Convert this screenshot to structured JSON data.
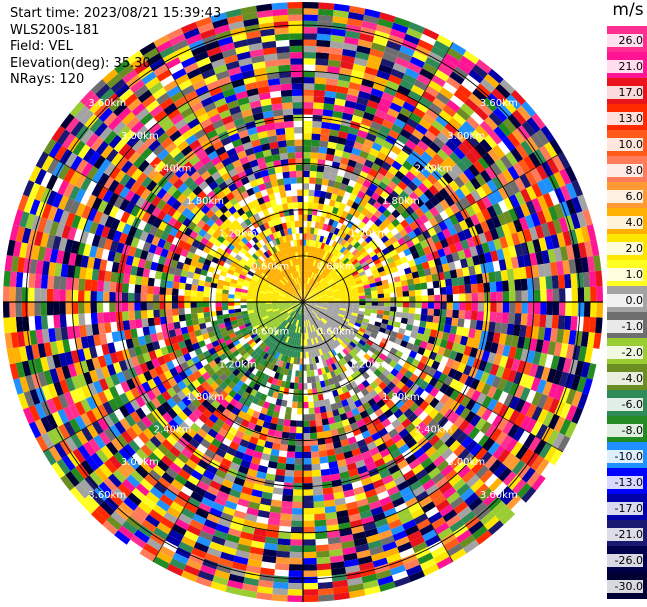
{
  "info": {
    "start_time": "Start time: 2023/08/21 15:39:43",
    "instrument": "WLS200s-181",
    "field": "Field: VEL",
    "elevation": "Elevation(deg): 35.30",
    "nrays": "NRays: 120"
  },
  "colorbar": {
    "unit": "m/s",
    "labels": [
      "26.0",
      "21.0",
      "17.0",
      "13.0",
      "10.0",
      "8.0",
      "6.0",
      "4.0",
      "2.0",
      "1.0",
      "0.0",
      "-1.0",
      "-2.0",
      "-4.0",
      "-6.0",
      "-8.0",
      "-10.0",
      "-13.0",
      "-17.0",
      "-21.0",
      "-26.0",
      "-30.0"
    ],
    "colors": [
      "#ff2f92",
      "#ff1493",
      "#e8131b",
      "#ff2a00",
      "#ff5a1a",
      "#ff7b5a",
      "#ff9a33",
      "#ffb000",
      "#ffe600",
      "#ffff22",
      "#a3a3a3",
      "#6e6e6e",
      "#9acd32",
      "#6b8e23",
      "#2e8b57",
      "#228b22",
      "#1e90ff",
      "#0000ff",
      "#0000aa",
      "#191970",
      "#00004a",
      "#000033"
    ]
  },
  "chart_data": {
    "type": "heatmap",
    "projection": "polar PPI",
    "field": "VEL",
    "unit": "m/s",
    "nrays": 120,
    "elevation_deg": 35.3,
    "range_rings_km": [
      0.6,
      1.2,
      1.8,
      2.4,
      3.0,
      3.6
    ],
    "range_ring_labels": [
      "0.60km",
      "1.20km",
      "1.80km",
      "2.40km",
      "3.00km",
      "3.60km"
    ],
    "ring_label_text": [
      "3.60km",
      "3.00km",
      "2.40km",
      "1.80km",
      "1.20km",
      "0.60km"
    ],
    "color_levels": [
      26.0,
      21.0,
      17.0,
      13.0,
      10.0,
      8.0,
      6.0,
      4.0,
      2.0,
      1.0,
      0.0,
      -1.0,
      -2.0,
      -4.0,
      -6.0,
      -8.0,
      -10.0,
      -13.0,
      -17.0,
      -21.0,
      -26.0,
      -30.0
    ]
  }
}
